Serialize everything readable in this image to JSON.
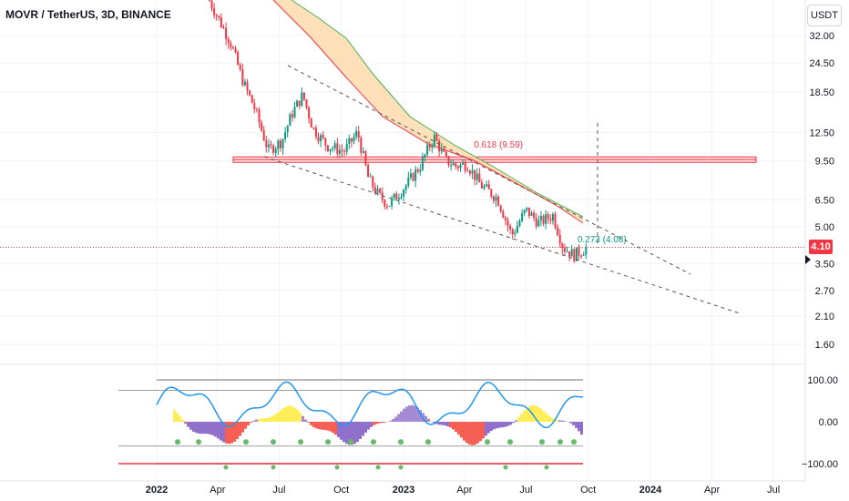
{
  "header": {
    "symbol": "MOVR / TetherUS, 3D, BINANCE",
    "currency": "USDT"
  },
  "last_price": "4.10",
  "chart_data": {
    "type": "candlestick",
    "price_axis": {
      "scale": "log",
      "ticks": [
        32.0,
        24.5,
        18.5,
        12.5,
        9.5,
        6.5,
        5.0,
        3.5,
        2.7,
        2.1,
        1.6
      ],
      "tick_labels": [
        "32.00",
        "24.50",
        "18.50",
        "12.50",
        "9.50",
        "6.50",
        "5.00",
        "3.50",
        "2.70",
        "2.10",
        "1.60"
      ]
    },
    "time_axis": {
      "labels": [
        "2022",
        "Apr",
        "Jul",
        "Oct",
        "2023",
        "Apr",
        "Jul",
        "Oct",
        "2024",
        "Apr",
        "Jul"
      ],
      "bold": [
        "2022",
        "2023",
        "2024"
      ]
    },
    "price_path": [
      [
        "2022-03-20",
        45
      ],
      [
        "2022-04-20",
        30
      ],
      [
        "2022-05-10",
        20
      ],
      [
        "2022-05-25",
        16
      ],
      [
        "2022-06-15",
        10.5
      ],
      [
        "2022-07-05",
        11.5
      ],
      [
        "2022-07-20",
        15
      ],
      [
        "2022-08-05",
        18
      ],
      [
        "2022-08-20",
        13
      ],
      [
        "2022-09-10",
        11
      ],
      [
        "2022-10-05",
        10.4
      ],
      [
        "2022-10-25",
        12.5
      ],
      [
        "2022-11-10",
        8
      ],
      [
        "2022-11-25",
        6.8
      ],
      [
        "2022-12-10",
        6.2
      ],
      [
        "2023-01-05",
        7.5
      ],
      [
        "2023-01-25",
        9
      ],
      [
        "2023-02-15",
        12
      ],
      [
        "2023-03-05",
        9.5
      ],
      [
        "2023-03-20",
        9
      ],
      [
        "2023-04-05",
        9.2
      ],
      [
        "2023-04-25",
        7.5
      ],
      [
        "2023-05-20",
        6.6
      ],
      [
        "2023-06-10",
        4.6
      ],
      [
        "2023-07-01",
        5.9
      ],
      [
        "2023-07-20",
        5.2
      ],
      [
        "2023-08-10",
        5.6
      ],
      [
        "2023-08-25",
        4.1
      ],
      [
        "2023-09-10",
        3.8
      ],
      [
        "2023-09-30",
        4.1
      ]
    ],
    "overlays": [
      {
        "name": "resistance",
        "value": 9.6,
        "color": "#f23645"
      },
      {
        "name": "current",
        "value": 4.1,
        "color": "#f23645"
      }
    ],
    "annotations": [
      {
        "text": "0.618 (9.59)",
        "x": "2023-04-15",
        "y": 10.8,
        "color": "#f23645"
      },
      {
        "text": "0.273 (4.08)",
        "x": "2023-09-15",
        "y": 4.3,
        "color": "#089981"
      }
    ],
    "oscillator": {
      "ticks": [
        "100.00",
        "0.00",
        "−100.00"
      ],
      "levels": [
        100,
        0,
        -100
      ]
    }
  }
}
